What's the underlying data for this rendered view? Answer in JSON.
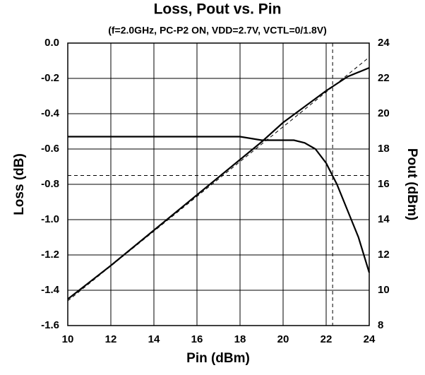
{
  "chart_data": {
    "type": "line",
    "title": "Loss, Pout vs. Pin",
    "subtitle": "(f=2.0GHz, PC-P2 ON, VDD=2.7V, VCTL=0/1.8V)",
    "x_label": "Pin (dBm)",
    "y_label": "Loss (dB)",
    "y2_label": "Pout (dBm)",
    "xlim": [
      10,
      24
    ],
    "xticks": [
      10,
      12,
      14,
      16,
      18,
      20,
      22,
      24
    ],
    "ylim": [
      -1.6,
      0
    ],
    "yticks": [
      {
        "value": 0,
        "label": "0.0"
      },
      -0.2,
      -0.4,
      -0.6,
      -0.8,
      {
        "value": -1,
        "label": "-1.0"
      },
      -1.2,
      -1.4,
      -1.6
    ],
    "y2lim": [
      8,
      24
    ],
    "y2ticks": [
      8,
      10,
      12,
      14,
      16,
      18,
      20,
      22,
      24
    ],
    "grid": true,
    "series": [
      {
        "color": "#000000",
        "axis": "y",
        "dashed": false,
        "x": [
          10,
          12,
          14,
          16,
          18,
          19,
          20,
          20.5,
          21,
          21.5,
          22,
          22.5,
          23,
          23.5,
          24
        ],
        "values": [
          -0.53,
          -0.53,
          -0.53,
          -0.53,
          -0.53,
          -0.55,
          -0.55,
          -0.55,
          -0.565,
          -0.6,
          -0.68,
          -0.8,
          -0.95,
          -1.1,
          -1.3
        ]
      },
      {
        "color": "#000000",
        "axis": "y2",
        "dashed": false,
        "x": [
          10,
          12,
          14,
          16,
          18,
          19,
          20,
          21,
          22,
          23,
          24
        ],
        "values": [
          9.5,
          11.4,
          13.4,
          15.4,
          17.4,
          18.4,
          19.5,
          20.4,
          21.3,
          22.1,
          22.6
        ]
      },
      {
        "color": "#000000",
        "axis": "y2",
        "dashed": true,
        "x": [
          10,
          24
        ],
        "values": [
          9.4,
          23.2
        ]
      }
    ],
    "reference_lines": {
      "y": [
        -0.75
      ],
      "x": [
        22.3
      ]
    }
  }
}
